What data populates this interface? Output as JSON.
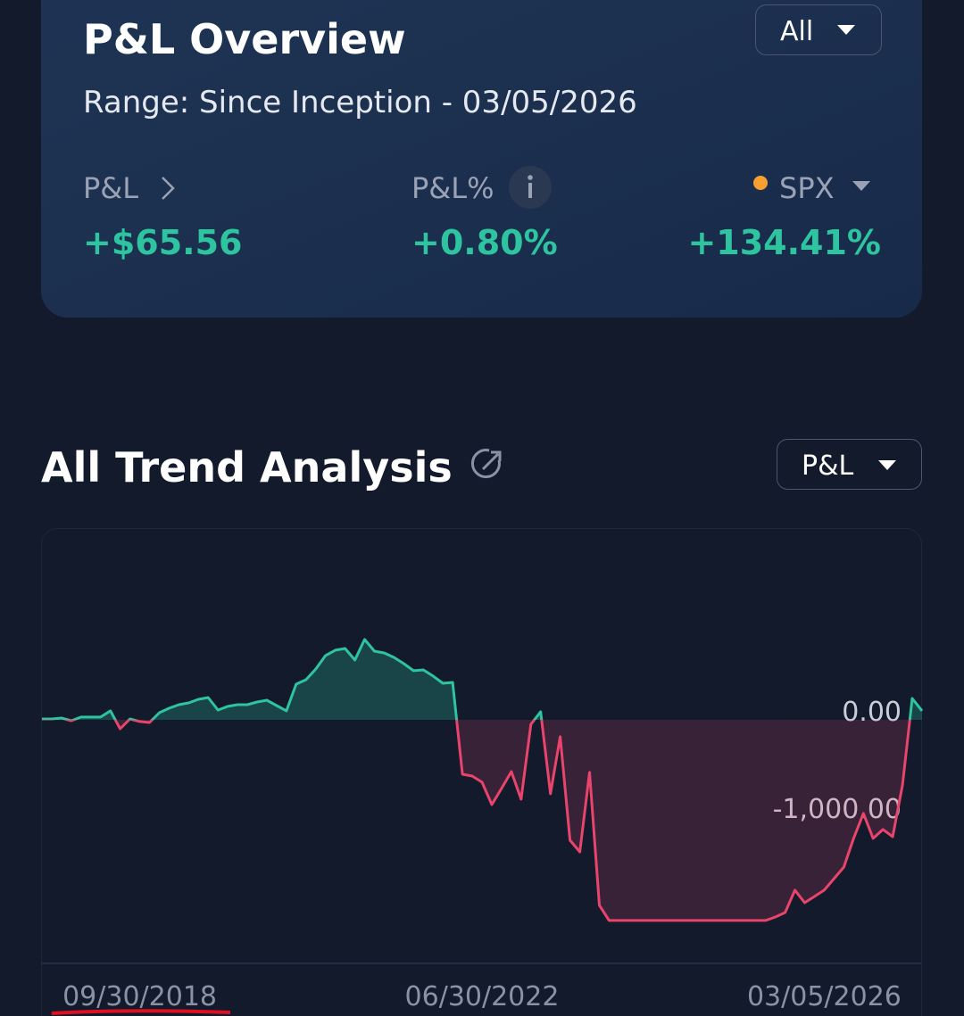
{
  "overview": {
    "title": "P&L Overview",
    "range": "Range: Since Inception - 03/05/2026",
    "filter": "All",
    "metrics": [
      {
        "label": "P&L",
        "value": "+$65.56"
      },
      {
        "label": "P&L%",
        "value": "+0.80%"
      },
      {
        "label": "SPX",
        "value": "+134.41%"
      }
    ]
  },
  "trend": {
    "title": "All Trend Analysis",
    "selector": "P&L"
  },
  "chart_data": {
    "type": "area",
    "categories": [
      null,
      null,
      null,
      null,
      null,
      null,
      null,
      null,
      null,
      null,
      "09/30/2018",
      null,
      null,
      null,
      null,
      null,
      null,
      null,
      null,
      null,
      null,
      null,
      null,
      null,
      null,
      null,
      null,
      null,
      null,
      null,
      null,
      null,
      null,
      null,
      null,
      null,
      null,
      null,
      null,
      null,
      null,
      null,
      null,
      null,
      null,
      "06/30/2022",
      null,
      null,
      null,
      null,
      null,
      null,
      null,
      null,
      null,
      null,
      null,
      null,
      null,
      null,
      null,
      null,
      null,
      null,
      null,
      null,
      null,
      null,
      null,
      null,
      null,
      null,
      null,
      null,
      null,
      null,
      null,
      null,
      null,
      null,
      "03/05/2026",
      null,
      null,
      null,
      null,
      null,
      null,
      null,
      null,
      null,
      null
    ],
    "series": [
      {
        "color": "#2ec4a0",
        "negative_color": "#e8446c",
        "values": [
          9,
          9,
          18,
          -9,
          28,
          28,
          28,
          92,
          -92,
          9,
          -18,
          -28,
          73,
          119,
          156,
          174,
          211,
          229,
          101,
          138,
          156,
          156,
          183,
          202,
          147,
          92,
          367,
          413,
          523,
          661,
          716,
          734,
          615,
          826,
          706,
          688,
          642,
          578,
          505,
          514,
          450,
          376,
          385,
          -560,
          -578,
          -642,
          -872,
          -706,
          -532,
          -817,
          -46,
          83,
          -761,
          -174,
          -1239,
          -1358,
          -541,
          -1908,
          -2064,
          -2064,
          -2064,
          -2064,
          -2064,
          -2064,
          -2064,
          -2064,
          -2064,
          -2064,
          -2064,
          -2064,
          -2064,
          -2064,
          -2064,
          -2064,
          -2064,
          -2028,
          -1982,
          -1752,
          -1881,
          -1817,
          -1752,
          -1633,
          -1514,
          -1220,
          -963,
          -1220,
          -1128,
          -1202,
          -670,
          220,
          92
        ]
      }
    ],
    "ylim": [
      -2505,
      1899
    ],
    "yticks": [
      {
        "value": 0,
        "label": "0.00"
      },
      {
        "value": -1000,
        "label": "-1,000.00"
      }
    ],
    "grid": false
  }
}
